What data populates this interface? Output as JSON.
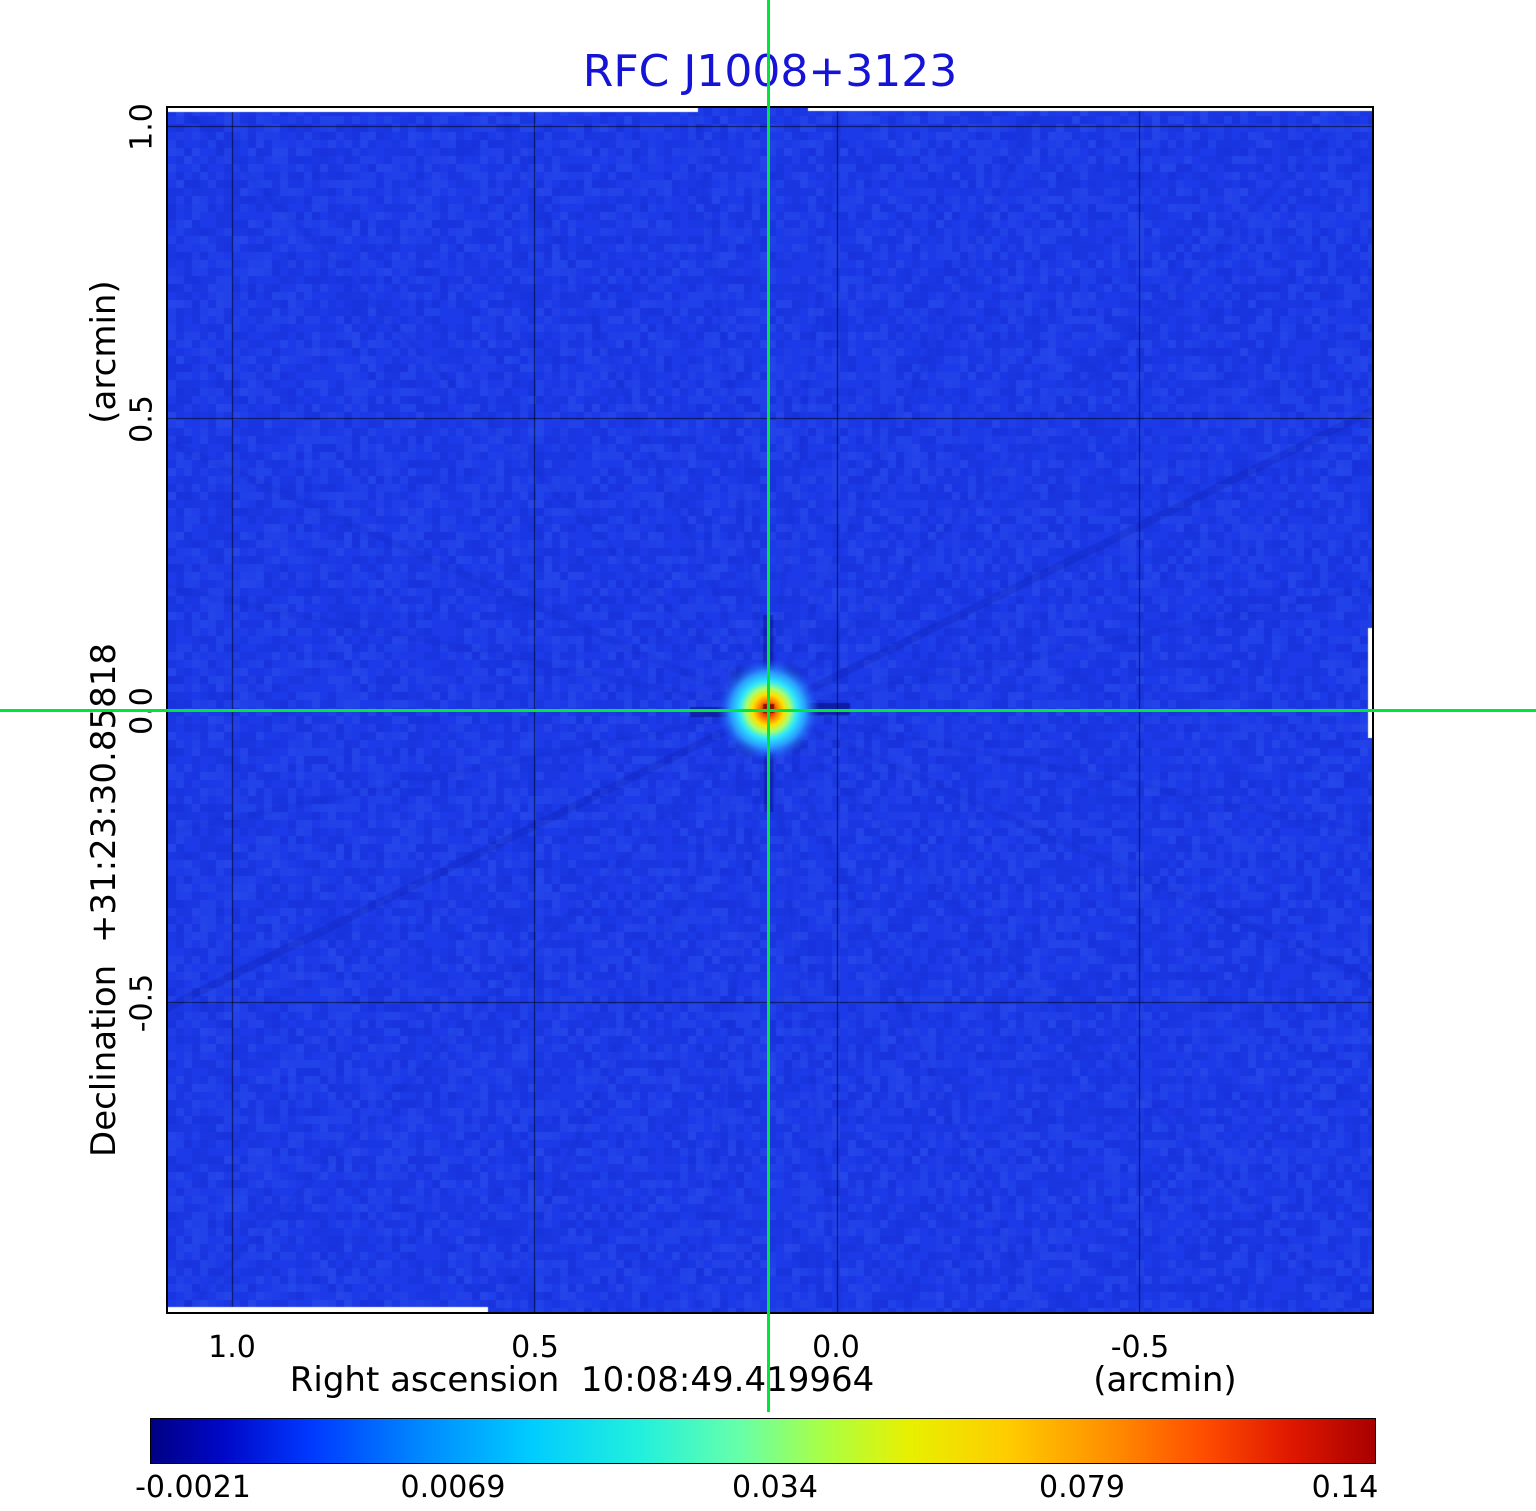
{
  "title": "RFC J1008+3123",
  "axes": {
    "y_unit_label": "(arcmin)",
    "y_axis_label": "Declination  +31:23:30.85818",
    "y_ticks": [
      "1.0",
      "0.5",
      "0.0",
      "-0.5"
    ],
    "x_ticks": [
      "1.0",
      "0.5",
      "0.0",
      "-0.5"
    ],
    "x_axis_label": "Right ascension  10:08:49.419964",
    "x_unit_label": "(arcmin)"
  },
  "colorbar": {
    "colormap": "jet",
    "tick_labels": [
      "-0.0021",
      "0.0069",
      "0.034",
      "0.079",
      "0.14"
    ]
  },
  "chart_data": {
    "type": "heatmap",
    "title": "RFC J1008+3123",
    "xlabel": "Right ascension  10:08:49.419964  (arcmin)",
    "ylabel": "Declination  +31:23:30.85818  (arcmin)",
    "source_coordinates": {
      "ra": "10:08:49.419964",
      "dec": "+31:23:30.85818"
    },
    "colormap": "jet",
    "value_range": [
      -0.0021,
      0.14
    ],
    "colorbar_ticks": [
      -0.0021,
      0.0069,
      0.034,
      0.079,
      0.14
    ],
    "x_tick_values": [
      1.0,
      0.5,
      0.0,
      -0.5
    ],
    "y_tick_values": [
      1.0,
      0.5,
      0.0,
      -0.5
    ],
    "axis_range": {
      "x_left": 1.105,
      "x_right": -0.885,
      "y_top": 1.03,
      "y_bottom": -1.03
    },
    "grid": true,
    "crosshair": {
      "x": 0.113,
      "y": 0.0
    },
    "peak": {
      "x": 0.113,
      "y": 0.0,
      "value": 0.14
    },
    "background_level": 0.0007,
    "colors": {
      "title": "#1413d6",
      "crosshair": "#00e53c",
      "background": "#1c3ae8",
      "grid": "rgba(0,0,0,0.65)"
    }
  }
}
